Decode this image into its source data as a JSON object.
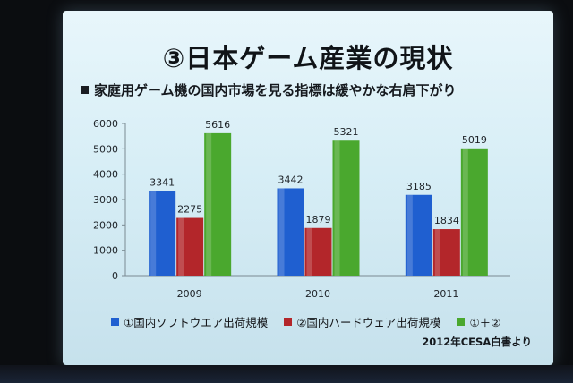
{
  "slide": {
    "title": "③日本ゲーム産業の現状",
    "subtitle": "家庭用ゲーム機の国内市場を見る指標は緩やかな右肩下がり",
    "source": "2012年CESA白書より"
  },
  "chart_data": {
    "type": "bar",
    "categories": [
      "2009",
      "2010",
      "2011"
    ],
    "series": [
      {
        "name": "①国内ソフトウエア出荷規模",
        "values": [
          3341,
          3442,
          3185
        ],
        "color": "#1f5fd0"
      },
      {
        "name": "②国内ハードウェア出荷規模",
        "values": [
          2275,
          1879,
          1834
        ],
        "color": "#b3262a"
      },
      {
        "name": "①＋②",
        "values": [
          5616,
          5321,
          5019
        ],
        "color": "#4aa82e"
      }
    ],
    "yticks": [
      "0",
      "1000",
      "2000",
      "3000",
      "4000",
      "5000",
      "6000"
    ],
    "ylim": [
      0,
      6000
    ],
    "grid": false,
    "legend": "bottom"
  }
}
